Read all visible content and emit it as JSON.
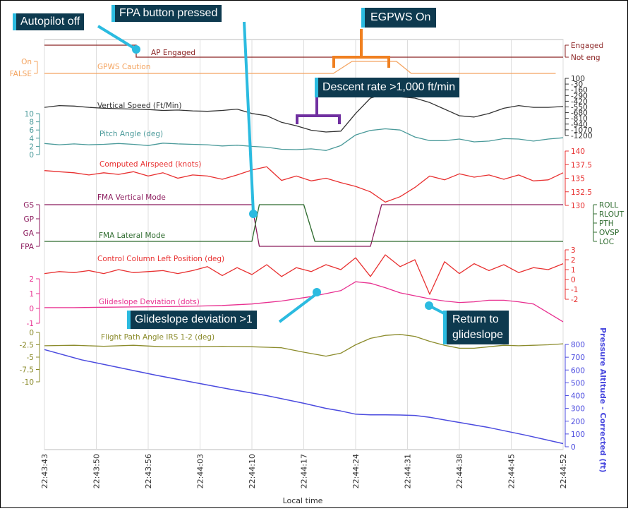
{
  "colors": {
    "ap": "#8b2323",
    "gpws": "#f4a460",
    "vs": "#333333",
    "pitch": "#4a9a9a",
    "cas": "#e83030",
    "fma_v": "#8b1a5c",
    "fma_l": "#2e6b2e",
    "ccl": "#e83030",
    "gs": "#e83090",
    "fpa": "#8b8b2b",
    "alt": "#4b4bdf",
    "callout_bg": "#0e3a4f",
    "callout_line": "#2bbbe0",
    "orange": "#f08020",
    "purple": "#7030a0"
  },
  "annotations": {
    "autopilot_off": "Autopilot off",
    "fpa_button": "FPA button pressed",
    "egpws_on": "EGPWS On",
    "descent_rate": "Descent rate >1,000 ft/min",
    "gs_dev": "Glideslope deviation >1",
    "return_gs_1": "Return to",
    "return_gs_2": "glideslope"
  },
  "chart_data": {
    "type": "line",
    "xlabel": "Local time",
    "x_ticks": [
      "22:43:43",
      "22:43:50",
      "22:43:56",
      "22:44:03",
      "22:44:10",
      "22:44:17",
      "22:44:24",
      "22:44:31",
      "22:44:38",
      "22:44:45",
      "22:44:52"
    ],
    "series": [
      {
        "name": "AP Engaged",
        "axis_labels_right": [
          "Engaged",
          "Not eng"
        ],
        "x": [
          0,
          70
        ],
        "values": [
          "Engaged",
          "Not eng"
        ]
      },
      {
        "name": "GPWS Caution",
        "axis_labels_left": [
          "On",
          "FALSE"
        ],
        "x": [
          0,
          39,
          41.5,
          47.5,
          49.5,
          69
        ],
        "values": [
          "FALSE",
          "FALSE",
          "On",
          "On",
          "FALSE",
          "FALSE"
        ]
      },
      {
        "name": "Vertical Speed (Ft/Min)",
        "axis_ticks": [
          "100",
          "-30",
          "-160",
          "-290",
          "-420",
          "-550",
          "-680",
          "-810",
          "-940",
          "-1070",
          "-1200"
        ],
        "x": [
          0,
          2,
          4,
          6,
          8,
          10,
          12,
          14,
          16,
          18,
          20,
          22,
          24,
          26,
          28,
          30,
          32,
          34,
          36,
          38,
          40,
          42,
          44,
          46,
          48,
          50,
          52,
          54,
          56,
          58,
          60,
          62,
          64,
          66,
          68,
          70
        ],
        "values": [
          -560,
          -520,
          -530,
          -560,
          -580,
          -590,
          -600,
          -610,
          -630,
          -620,
          -640,
          -650,
          -630,
          -600,
          -700,
          -750,
          -900,
          -980,
          -1080,
          -1120,
          -1100,
          -700,
          -350,
          -250,
          -320,
          -350,
          -450,
          -600,
          -750,
          -780,
          -700,
          -580,
          -520,
          -560,
          -560,
          -540
        ]
      },
      {
        "name": "Pitch Angle (deg)",
        "axis_ticks": [
          "0",
          "2",
          "4",
          "6",
          "8",
          "10"
        ],
        "x": [
          0,
          2,
          4,
          6,
          8,
          10,
          12,
          14,
          16,
          18,
          20,
          22,
          24,
          26,
          28,
          30,
          32,
          34,
          36,
          38,
          40,
          42,
          44,
          46,
          48,
          50,
          52,
          54,
          56,
          58,
          60,
          62,
          64,
          66,
          68,
          70
        ],
        "values": [
          2.7,
          2.4,
          2.6,
          2.4,
          2.5,
          2.7,
          2.5,
          2.2,
          2.8,
          2.6,
          2.5,
          2.4,
          2.1,
          2.3,
          2.0,
          1.8,
          1.3,
          1.2,
          1.4,
          1.0,
          2.2,
          4.8,
          5.9,
          6.3,
          6.0,
          4.3,
          3.4,
          3.4,
          3.8,
          3.1,
          3.3,
          3.9,
          3.8,
          3.3,
          3.8,
          4.1
        ]
      },
      {
        "name": "Computed Airspeed (knots)",
        "axis_ticks": [
          "130",
          "132.5",
          "135",
          "137.5",
          "140"
        ],
        "x": [
          0,
          2,
          4,
          6,
          8,
          10,
          12,
          14,
          16,
          18,
          20,
          22,
          24,
          26,
          28,
          30,
          32,
          34,
          36,
          38,
          40,
          42,
          44,
          46,
          48,
          50,
          52,
          54,
          56,
          58,
          60,
          62,
          64,
          66,
          68,
          70
        ],
        "values": [
          136.4,
          136.2,
          136.0,
          135.6,
          136.0,
          135.7,
          136.2,
          135.4,
          136.0,
          135.0,
          135.6,
          135.4,
          134.8,
          135.6,
          136.5,
          137.1,
          134.6,
          135.4,
          134.5,
          135.0,
          134.2,
          133.5,
          132.5,
          130.6,
          131.6,
          133.3,
          135.4,
          134.7,
          135.8,
          135.2,
          135.6,
          134.8,
          135.6,
          134.5,
          134.7,
          136.0
        ]
      },
      {
        "name": "FMA Vertical Mode",
        "axis_labels_left": [
          "GS",
          "GP",
          "GA",
          "FPA"
        ],
        "x": [
          0,
          28,
          29,
          44,
          45.5,
          70
        ],
        "values": [
          "GS",
          "GS",
          "FPA",
          "FPA",
          "GS",
          "GS"
        ]
      },
      {
        "name": "FMA Lateral Mode",
        "axis_labels_right": [
          "ROLL",
          "RLOUT",
          "PTH",
          "OVSP",
          "LOC"
        ],
        "x": [
          0,
          28,
          29,
          35,
          36.5,
          70
        ],
        "values": [
          "LOC",
          "LOC",
          "ROLL",
          "ROLL",
          "LOC",
          "LOC"
        ]
      },
      {
        "name": "Control Column Left Position (deg)",
        "axis_ticks": [
          "3",
          "2",
          "1",
          "0",
          "-1",
          "-2"
        ],
        "x": [
          0,
          2,
          4,
          6,
          8,
          10,
          12,
          14,
          16,
          18,
          20,
          22,
          24,
          26,
          28,
          30,
          32,
          34,
          36,
          38,
          40,
          42,
          44,
          46,
          48,
          50,
          52,
          54,
          56,
          58,
          60,
          62,
          64,
          66,
          68,
          70
        ],
        "values": [
          0.6,
          0.8,
          0.7,
          0.9,
          0.6,
          1.0,
          0.7,
          0.8,
          0.9,
          0.6,
          0.9,
          1.3,
          0.4,
          1.2,
          0.5,
          1.5,
          0.3,
          1.2,
          0.8,
          1.5,
          1.0,
          2.2,
          0.3,
          2.5,
          1.3,
          2.0,
          -1.5,
          1.8,
          0.6,
          1.6,
          0.9,
          1.5,
          0.7,
          1.2,
          1.0,
          1.6
        ]
      },
      {
        "name": "Glideslope Deviation (dots)",
        "axis_ticks": [
          "2",
          "1",
          "0",
          "-1"
        ],
        "x": [
          0,
          4,
          8,
          12,
          16,
          20,
          24,
          28,
          32,
          36,
          40,
          41,
          42,
          44,
          46,
          48,
          50,
          52,
          54,
          56,
          58,
          60,
          62,
          64,
          66,
          68,
          70
        ],
        "values": [
          0.05,
          0.05,
          0.08,
          0.1,
          0.12,
          0.15,
          0.2,
          0.3,
          0.5,
          0.8,
          1.2,
          1.5,
          1.8,
          1.7,
          1.4,
          1.05,
          0.85,
          0.65,
          0.5,
          0.4,
          0.45,
          0.55,
          0.55,
          0.45,
          0.3,
          -0.3,
          -0.9
        ]
      },
      {
        "name": "Flight Path Angle IRS 1-2 (deg)",
        "axis_ticks": [
          "0",
          "-2.5",
          "-5",
          "-7.5",
          "-10"
        ],
        "x": [
          0,
          4,
          8,
          12,
          16,
          20,
          24,
          28,
          32,
          35,
          38,
          40,
          42,
          44,
          46,
          48,
          50,
          52,
          54,
          56,
          58,
          60,
          62,
          64,
          66,
          68,
          70
        ],
        "values": [
          -2.7,
          -2.6,
          -2.8,
          -2.6,
          -2.9,
          -2.9,
          -2.8,
          -2.9,
          -3.1,
          -4.0,
          -4.8,
          -4.2,
          -2.5,
          -1.2,
          -0.6,
          -0.4,
          -0.8,
          -1.8,
          -2.6,
          -3.2,
          -3.2,
          -2.9,
          -2.6,
          -2.7,
          -2.6,
          -2.5,
          -2.3
        ]
      },
      {
        "name": "Pressure Altitude - Corrected (ft)",
        "axis_ticks": [
          "0",
          "100",
          "200",
          "300",
          "400",
          "500",
          "600",
          "700",
          "800"
        ],
        "x": [
          0,
          5,
          10,
          15,
          20,
          25,
          30,
          35,
          38,
          40,
          42,
          44,
          46,
          48,
          50,
          52,
          55,
          60,
          65,
          70
        ],
        "values": [
          760,
          680,
          620,
          560,
          505,
          450,
          400,
          340,
          300,
          280,
          255,
          250,
          250,
          248,
          245,
          230,
          200,
          150,
          90,
          25
        ]
      }
    ]
  }
}
